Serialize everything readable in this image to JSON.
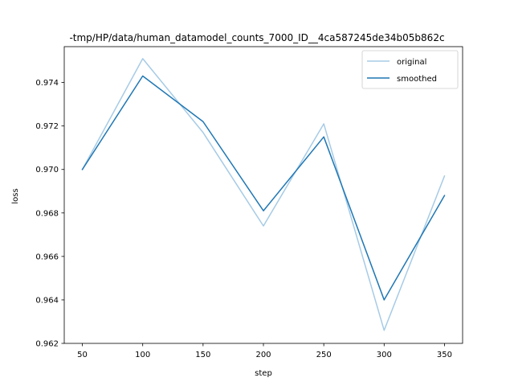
{
  "chart_data": {
    "type": "line",
    "title": "-tmp/HP/data/human_datamodel_counts_7000_ID__4ca587245de34b05b862c",
    "xlabel": "step",
    "ylabel": "loss",
    "x": [
      50,
      100,
      150,
      200,
      250,
      300,
      350
    ],
    "xlim": [
      35,
      365
    ],
    "ylim": [
      0.962,
      0.97565
    ],
    "xticks": [
      50,
      100,
      150,
      200,
      250,
      300,
      350
    ],
    "yticks": [
      0.962,
      0.964,
      0.966,
      0.968,
      0.97,
      0.972,
      0.974
    ],
    "ytick_labels": [
      "0.962",
      "0.964",
      "0.966",
      "0.968",
      "0.970",
      "0.972",
      "0.974"
    ],
    "grid": false,
    "legend_position": "upper right",
    "series": [
      {
        "name": "original",
        "color": "#a6cbe6",
        "values": [
          0.97,
          0.9751,
          0.9717,
          0.9674,
          0.9721,
          0.9626,
          0.9697
        ]
      },
      {
        "name": "smoothed",
        "color": "#1f77b4",
        "values": [
          0.97,
          0.9743,
          0.9722,
          0.9681,
          0.9715,
          0.964,
          0.9688
        ]
      }
    ]
  }
}
